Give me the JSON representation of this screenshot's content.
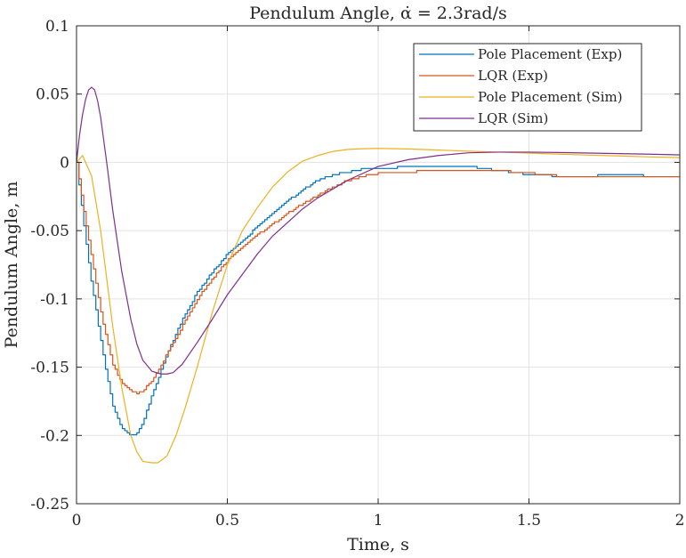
{
  "chart_data": {
    "type": "line",
    "title": "Pendulum Angle, α̇ = 2.3rad/s",
    "xlabel": "Time, s",
    "ylabel": "Pendulum Angle, m",
    "xlim": [
      0,
      2
    ],
    "ylim": [
      -0.25,
      0.1
    ],
    "x_ticks": [
      0,
      0.5,
      1,
      1.5,
      2
    ],
    "x_tick_labels": [
      "0",
      "0.5",
      "1",
      "1.5",
      "2"
    ],
    "y_ticks": [
      0.1,
      0.05,
      0,
      -0.05,
      -0.1,
      -0.15,
      -0.2,
      -0.25
    ],
    "y_tick_labels": [
      "0.1",
      "0.05",
      "0",
      "-0.05",
      "-0.1",
      "-0.15",
      "-0.2",
      "-0.25"
    ],
    "grid": true,
    "legend_position": "top-right",
    "series": [
      {
        "name": "Pole Placement (Exp)",
        "color": "#0072BD",
        "stairs": true,
        "x": [
          0,
          0.02,
          0.05,
          0.08,
          0.1,
          0.12,
          0.15,
          0.18,
          0.2,
          0.22,
          0.25,
          0.3,
          0.35,
          0.4,
          0.45,
          0.5,
          0.55,
          0.6,
          0.65,
          0.7,
          0.75,
          0.8,
          0.85,
          0.9,
          0.95,
          1.0,
          1.1,
          1.2,
          1.3,
          1.4,
          1.5,
          1.6,
          1.7,
          1.8,
          1.9,
          2.0
        ],
        "y": [
          0,
          -0.04,
          -0.09,
          -0.13,
          -0.157,
          -0.178,
          -0.195,
          -0.2,
          -0.198,
          -0.19,
          -0.17,
          -0.14,
          -0.115,
          -0.095,
          -0.08,
          -0.067,
          -0.057,
          -0.047,
          -0.037,
          -0.028,
          -0.02,
          -0.013,
          -0.009,
          -0.007,
          -0.005,
          -0.005,
          -0.003,
          -0.003,
          -0.003,
          -0.006,
          -0.009,
          -0.01,
          -0.01,
          -0.009,
          -0.01,
          -0.01
        ]
      },
      {
        "name": "LQR (Exp)",
        "color": "#D95319",
        "stairs": true,
        "x": [
          0,
          0.02,
          0.05,
          0.08,
          0.1,
          0.12,
          0.15,
          0.18,
          0.2,
          0.22,
          0.25,
          0.3,
          0.35,
          0.4,
          0.45,
          0.5,
          0.55,
          0.6,
          0.65,
          0.7,
          0.75,
          0.8,
          0.85,
          0.9,
          0.95,
          1.0,
          1.1,
          1.2,
          1.3,
          1.4,
          1.5,
          1.6,
          1.7,
          1.8,
          1.9,
          2.0
        ],
        "y": [
          0,
          -0.03,
          -0.07,
          -0.11,
          -0.13,
          -0.148,
          -0.162,
          -0.168,
          -0.169,
          -0.167,
          -0.16,
          -0.14,
          -0.12,
          -0.1,
          -0.085,
          -0.072,
          -0.062,
          -0.053,
          -0.045,
          -0.037,
          -0.03,
          -0.024,
          -0.018,
          -0.013,
          -0.01,
          -0.008,
          -0.007,
          -0.006,
          -0.006,
          -0.006,
          -0.008,
          -0.01,
          -0.011,
          -0.01,
          -0.01,
          -0.01
        ]
      },
      {
        "name": "Pole Placement (Sim)",
        "color": "#EDB120",
        "stairs": false,
        "x": [
          0,
          0.02,
          0.05,
          0.08,
          0.1,
          0.12,
          0.15,
          0.18,
          0.2,
          0.22,
          0.25,
          0.27,
          0.3,
          0.33,
          0.36,
          0.4,
          0.45,
          0.5,
          0.55,
          0.6,
          0.65,
          0.7,
          0.75,
          0.8,
          0.85,
          0.9,
          0.95,
          1.0,
          1.1,
          1.2,
          1.3,
          1.4,
          1.5,
          1.6,
          1.7,
          1.8,
          1.9,
          2.0
        ],
        "y": [
          0,
          0.005,
          -0.01,
          -0.05,
          -0.085,
          -0.12,
          -0.165,
          -0.2,
          -0.212,
          -0.219,
          -0.22,
          -0.22,
          -0.215,
          -0.2,
          -0.18,
          -0.15,
          -0.11,
          -0.075,
          -0.05,
          -0.033,
          -0.018,
          -0.007,
          0.001,
          0.005,
          0.008,
          0.0095,
          0.01,
          0.0102,
          0.0098,
          0.009,
          0.0082,
          0.0075,
          0.0068,
          0.006,
          0.0053,
          0.0047,
          0.004,
          0.0035
        ]
      },
      {
        "name": "LQR (Sim)",
        "color": "#7E2F8E",
        "stairs": false,
        "x": [
          0,
          0.01,
          0.02,
          0.03,
          0.04,
          0.05,
          0.06,
          0.07,
          0.08,
          0.1,
          0.12,
          0.15,
          0.18,
          0.2,
          0.22,
          0.25,
          0.28,
          0.3,
          0.32,
          0.35,
          0.4,
          0.45,
          0.5,
          0.55,
          0.6,
          0.65,
          0.7,
          0.75,
          0.8,
          0.9,
          1.0,
          1.1,
          1.2,
          1.3,
          1.4,
          1.5,
          1.6,
          1.7,
          1.8,
          1.9,
          2.0
        ],
        "y": [
          0,
          0.02,
          0.035,
          0.046,
          0.053,
          0.055,
          0.053,
          0.045,
          0.033,
          0.0,
          -0.035,
          -0.08,
          -0.115,
          -0.133,
          -0.145,
          -0.153,
          -0.155,
          -0.155,
          -0.154,
          -0.148,
          -0.132,
          -0.115,
          -0.097,
          -0.082,
          -0.067,
          -0.054,
          -0.044,
          -0.034,
          -0.026,
          -0.013,
          -0.003,
          0.002,
          0.005,
          0.007,
          0.0075,
          0.0075,
          0.0072,
          0.0068,
          0.0064,
          0.006,
          0.0055
        ]
      }
    ]
  }
}
